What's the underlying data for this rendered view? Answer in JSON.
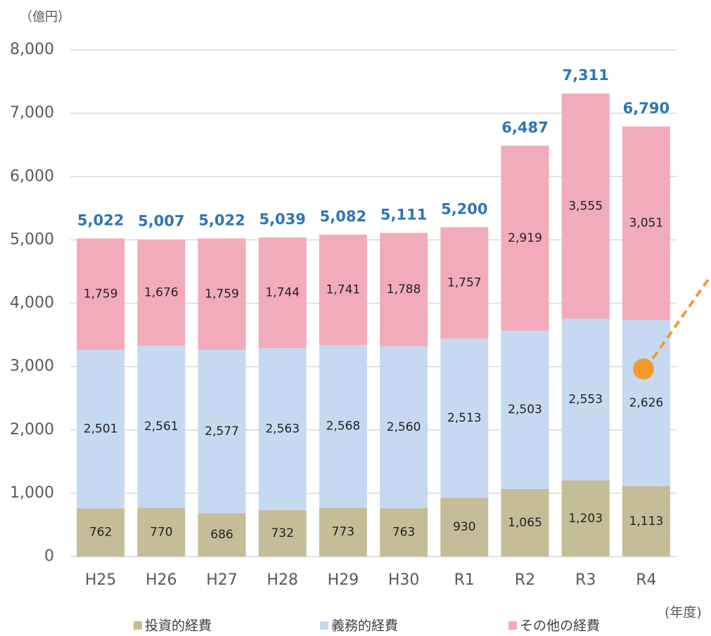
{
  "chart_data": {
    "type": "stacked_bar",
    "y_unit_label": "（億円）",
    "x_unit_label": "(年度)",
    "categories": [
      "H25",
      "H26",
      "H27",
      "H28",
      "H29",
      "H30",
      "R1",
      "R2",
      "R3",
      "R4"
    ],
    "series": [
      {
        "name": "投資的経費",
        "color": "#c4bd97",
        "values": [
          762,
          770,
          686,
          732,
          773,
          763,
          930,
          1065,
          1203,
          1113
        ],
        "value_labels": [
          "762",
          "770",
          "686",
          "732",
          "773",
          "763",
          "930",
          "1,065",
          "1,203",
          "1,113"
        ]
      },
      {
        "name": "義務的経費",
        "color": "#c6d9f1",
        "values": [
          2501,
          2561,
          2577,
          2563,
          2568,
          2560,
          2513,
          2503,
          2553,
          2626
        ],
        "value_labels": [
          "2,501",
          "2,561",
          "2,577",
          "2,563",
          "2,568",
          "2,560",
          "2,513",
          "2,503",
          "2,553",
          "2,626"
        ]
      },
      {
        "name": "その他の経費",
        "color": "#f2abba",
        "values": [
          1759,
          1676,
          1759,
          1744,
          1741,
          1788,
          1757,
          2919,
          3555,
          3051
        ],
        "value_labels": [
          "1,759",
          "1,676",
          "1,759",
          "1,744",
          "1,741",
          "1,788",
          "1,757",
          "2,919",
          "3,555",
          "3,051"
        ]
      }
    ],
    "totals": [
      5022,
      5007,
      5022,
      5039,
      5082,
      5111,
      5200,
      6487,
      7311,
      6790
    ],
    "total_labels": [
      "5,022",
      "5,007",
      "5,022",
      "5,039",
      "5,082",
      "5,111",
      "5,200",
      "6,487",
      "7,311",
      "6,790"
    ],
    "ylim": [
      0,
      8000
    ],
    "yticks": [
      0,
      {
        "value": 1000,
        "label": "1,000"
      },
      {
        "value": 2000,
        "label": "2,000"
      },
      {
        "value": 3000,
        "label": "3,000"
      },
      {
        "value": 4000,
        "label": "4,000"
      },
      {
        "value": 5000,
        "label": "5,000"
      },
      {
        "value": 6000,
        "label": "6,000"
      },
      {
        "value": 7000,
        "label": "7,000"
      },
      {
        "value": 8000,
        "label": "8,000"
      }
    ],
    "grid": true
  }
}
